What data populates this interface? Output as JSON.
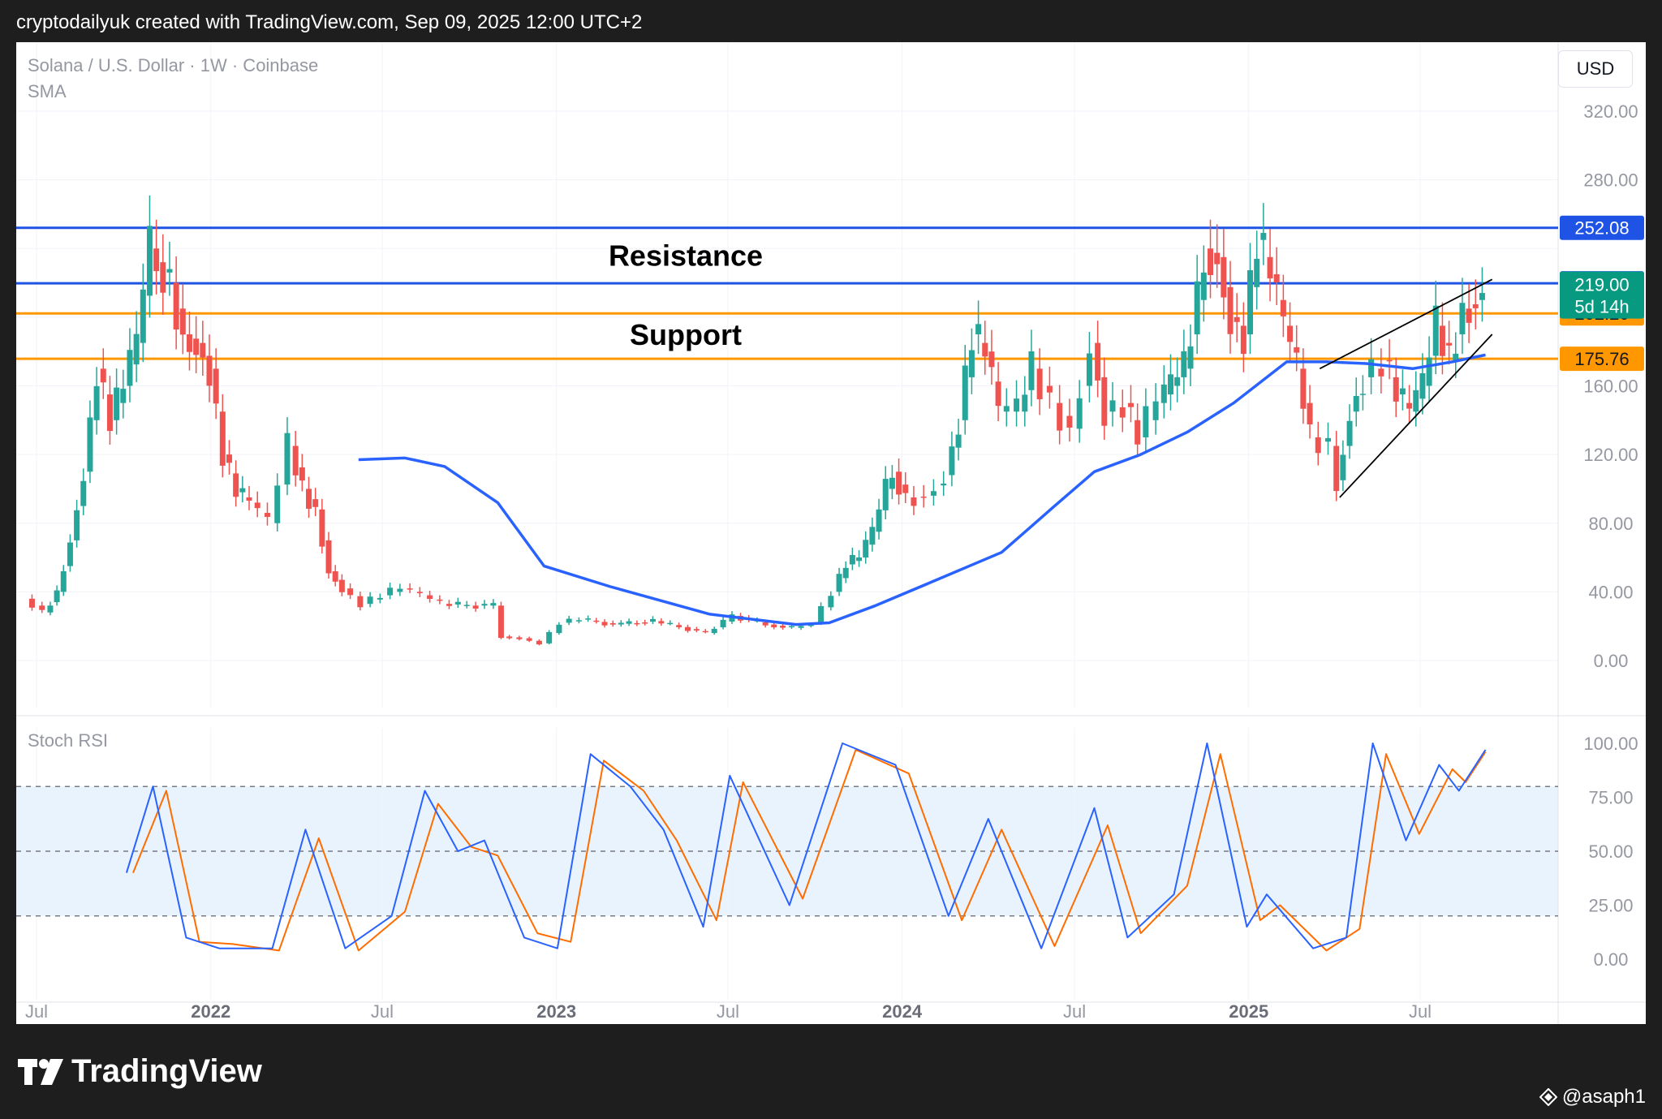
{
  "header": {
    "caption": "cryptodailyuk created with TradingView.com, Sep 09, 2025 12:00 UTC+2"
  },
  "chart": {
    "symbol": "Solana / U.S. Dollar · 1W · Coinbase",
    "indicator": "SMA",
    "currency_button": "USD",
    "oscillator_label": "Stoch RSI"
  },
  "footer": {
    "brand": "TradingView",
    "user": "@asaph1"
  },
  "colors": {
    "up": "#26a69a",
    "down": "#ef5350",
    "sma": "#2962ff",
    "resistance": "#1e53e5",
    "support": "#ff9800",
    "stoch_k": "#2962ff",
    "stoch_d": "#ff6d00",
    "price_tag": "#089981"
  },
  "chart_data": {
    "type": "candlestick",
    "price_axis": {
      "ticks": [
        "320.00",
        "280.00",
        "160.00",
        "120.00",
        "80.00",
        "40.00",
        "0.00"
      ],
      "range": [
        0,
        320
      ]
    },
    "time_axis": {
      "labels": [
        {
          "label": "Jul",
          "date": "2021-07-01",
          "bold": false
        },
        {
          "label": "2022",
          "date": "2022-01-01",
          "bold": true
        },
        {
          "label": "Jul",
          "date": "2022-07-01",
          "bold": false
        },
        {
          "label": "2023",
          "date": "2023-01-01",
          "bold": true
        },
        {
          "label": "Jul",
          "date": "2023-07-01",
          "bold": false
        },
        {
          "label": "2024",
          "date": "2024-01-01",
          "bold": true
        },
        {
          "label": "Jul",
          "date": "2024-07-01",
          "bold": false
        },
        {
          "label": "2025",
          "date": "2025-01-01",
          "bold": true
        },
        {
          "label": "Jul",
          "date": "2025-07-01",
          "bold": false
        }
      ]
    },
    "horizontal_levels": [
      {
        "name": "Resistance",
        "price": 252.08,
        "label": "252.08",
        "kind": "resistance"
      },
      {
        "price": 219.71,
        "label": "219.71",
        "kind": "resistance"
      },
      {
        "name": "Support",
        "price": 202.2,
        "label": "202.20",
        "kind": "support"
      },
      {
        "price": 175.76,
        "label": "175.76",
        "kind": "support"
      }
    ],
    "current_price": {
      "value": 219.0,
      "label": "219.00",
      "countdown": "5d 14h"
    },
    "annotations": [
      {
        "text": "Resistance",
        "price": 236
      },
      {
        "text": "Support",
        "price": 190
      }
    ],
    "price_series": [
      {
        "date": "2021-06-21",
        "value": 36
      },
      {
        "date": "2021-07-12",
        "value": 28
      },
      {
        "date": "2021-07-26",
        "value": 40
      },
      {
        "date": "2021-08-09",
        "value": 70
      },
      {
        "date": "2021-08-23",
        "value": 110
      },
      {
        "date": "2021-09-06",
        "value": 170
      },
      {
        "date": "2021-09-20",
        "value": 140
      },
      {
        "date": "2021-10-04",
        "value": 160
      },
      {
        "date": "2021-10-18",
        "value": 185
      },
      {
        "date": "2021-11-01",
        "value": 240
      },
      {
        "date": "2021-11-08",
        "value": 232
      },
      {
        "date": "2021-11-22",
        "value": 220
      },
      {
        "date": "2021-12-06",
        "value": 190
      },
      {
        "date": "2021-12-20",
        "value": 185
      },
      {
        "date": "2022-01-03",
        "value": 170
      },
      {
        "date": "2022-01-17",
        "value": 120
      },
      {
        "date": "2022-01-31",
        "value": 98
      },
      {
        "date": "2022-02-14",
        "value": 92
      },
      {
        "date": "2022-03-07",
        "value": 80
      },
      {
        "date": "2022-03-28",
        "value": 125
      },
      {
        "date": "2022-04-11",
        "value": 100
      },
      {
        "date": "2022-04-25",
        "value": 88
      },
      {
        "date": "2022-05-09",
        "value": 52
      },
      {
        "date": "2022-05-23",
        "value": 42
      },
      {
        "date": "2022-06-13",
        "value": 33
      },
      {
        "date": "2022-07-04",
        "value": 38
      },
      {
        "date": "2022-07-25",
        "value": 42
      },
      {
        "date": "2022-08-15",
        "value": 38
      },
      {
        "date": "2022-09-05",
        "value": 33
      },
      {
        "date": "2022-10-03",
        "value": 32
      },
      {
        "date": "2022-10-31",
        "value": 32
      },
      {
        "date": "2022-11-07",
        "value": 14
      },
      {
        "date": "2022-11-28",
        "value": 13
      },
      {
        "date": "2022-12-19",
        "value": 10
      },
      {
        "date": "2023-01-09",
        "value": 22
      },
      {
        "date": "2023-01-30",
        "value": 24
      },
      {
        "date": "2023-03-06",
        "value": 21
      },
      {
        "date": "2023-04-17",
        "value": 23
      },
      {
        "date": "2023-06-12",
        "value": 16
      },
      {
        "date": "2023-07-10",
        "value": 26
      },
      {
        "date": "2023-08-14",
        "value": 21
      },
      {
        "date": "2023-09-11",
        "value": 19
      },
      {
        "date": "2023-10-02",
        "value": 22
      },
      {
        "date": "2023-10-23",
        "value": 40
      },
      {
        "date": "2023-11-06",
        "value": 56
      },
      {
        "date": "2023-11-20",
        "value": 60
      },
      {
        "date": "2023-12-04",
        "value": 75
      },
      {
        "date": "2023-12-18",
        "value": 100
      },
      {
        "date": "2023-12-25",
        "value": 110
      },
      {
        "date": "2024-01-08",
        "value": 95
      },
      {
        "date": "2024-01-29",
        "value": 96
      },
      {
        "date": "2024-02-19",
        "value": 108
      },
      {
        "date": "2024-03-04",
        "value": 140
      },
      {
        "date": "2024-03-18",
        "value": 190
      },
      {
        "date": "2024-04-01",
        "value": 180
      },
      {
        "date": "2024-04-15",
        "value": 145
      },
      {
        "date": "2024-05-06",
        "value": 145
      },
      {
        "date": "2024-05-20",
        "value": 170
      },
      {
        "date": "2024-06-10",
        "value": 150
      },
      {
        "date": "2024-07-01",
        "value": 135
      },
      {
        "date": "2024-07-22",
        "value": 185
      },
      {
        "date": "2024-08-05",
        "value": 145
      },
      {
        "date": "2024-08-26",
        "value": 150
      },
      {
        "date": "2024-09-09",
        "value": 130
      },
      {
        "date": "2024-09-30",
        "value": 150
      },
      {
        "date": "2024-10-14",
        "value": 160
      },
      {
        "date": "2024-10-28",
        "value": 170
      },
      {
        "date": "2024-11-11",
        "value": 210
      },
      {
        "date": "2024-11-18",
        "value": 240
      },
      {
        "date": "2024-12-02",
        "value": 235
      },
      {
        "date": "2024-12-16",
        "value": 200
      },
      {
        "date": "2024-12-30",
        "value": 190
      },
      {
        "date": "2025-01-13",
        "value": 245
      },
      {
        "date": "2025-01-27",
        "value": 225
      },
      {
        "date": "2025-02-10",
        "value": 195
      },
      {
        "date": "2025-02-24",
        "value": 170
      },
      {
        "date": "2025-03-10",
        "value": 130
      },
      {
        "date": "2025-03-31",
        "value": 125
      },
      {
        "date": "2025-04-07",
        "value": 105
      },
      {
        "date": "2025-04-21",
        "value": 145
      },
      {
        "date": "2025-05-05",
        "value": 165
      },
      {
        "date": "2025-05-26",
        "value": 175
      },
      {
        "date": "2025-06-09",
        "value": 155
      },
      {
        "date": "2025-06-23",
        "value": 145
      },
      {
        "date": "2025-07-07",
        "value": 160
      },
      {
        "date": "2025-07-21",
        "value": 195
      },
      {
        "date": "2025-08-04",
        "value": 175
      },
      {
        "date": "2025-08-18",
        "value": 205
      },
      {
        "date": "2025-09-01",
        "value": 210
      },
      {
        "date": "2025-09-08",
        "value": 219
      }
    ],
    "sma_series": [
      {
        "date": "2022-06-06",
        "value": 117
      },
      {
        "date": "2022-07-25",
        "value": 118
      },
      {
        "date": "2022-09-05",
        "value": 113
      },
      {
        "date": "2022-10-31",
        "value": 92
      },
      {
        "date": "2022-12-19",
        "value": 55
      },
      {
        "date": "2023-02-27",
        "value": 43
      },
      {
        "date": "2023-06-12",
        "value": 27
      },
      {
        "date": "2023-09-11",
        "value": 21
      },
      {
        "date": "2023-10-16",
        "value": 22
      },
      {
        "date": "2023-12-04",
        "value": 32
      },
      {
        "date": "2024-01-29",
        "value": 45
      },
      {
        "date": "2024-04-15",
        "value": 63
      },
      {
        "date": "2024-06-10",
        "value": 90
      },
      {
        "date": "2024-07-22",
        "value": 110
      },
      {
        "date": "2024-09-09",
        "value": 120
      },
      {
        "date": "2024-10-28",
        "value": 133
      },
      {
        "date": "2024-12-16",
        "value": 150
      },
      {
        "date": "2025-02-10",
        "value": 174
      },
      {
        "date": "2025-03-24",
        "value": 174
      },
      {
        "date": "2025-05-05",
        "value": 173
      },
      {
        "date": "2025-06-23",
        "value": 170
      },
      {
        "date": "2025-08-04",
        "value": 174
      },
      {
        "date": "2025-09-08",
        "value": 178
      }
    ],
    "channel_lines": [
      {
        "from": {
          "date": "2025-04-07",
          "price": 95
        },
        "to": {
          "date": "2025-09-15",
          "price": 190
        }
      },
      {
        "from": {
          "date": "2025-03-17",
          "price": 170
        },
        "to": {
          "date": "2025-09-15",
          "price": 222
        }
      }
    ],
    "stoch_rsi": {
      "ticks": [
        "100.00",
        "75.00",
        "50.00",
        "25.00",
        "0.00"
      ],
      "range": [
        0,
        100
      ],
      "overbought": 80,
      "middle": 50,
      "oversold": 20,
      "k_series": [
        {
          "date": "2021-10-04",
          "value": 40
        },
        {
          "date": "2021-11-01",
          "value": 80
        },
        {
          "date": "2021-12-06",
          "value": 10
        },
        {
          "date": "2022-01-10",
          "value": 5
        },
        {
          "date": "2022-03-07",
          "value": 5
        },
        {
          "date": "2022-04-11",
          "value": 60
        },
        {
          "date": "2022-05-23",
          "value": 5
        },
        {
          "date": "2022-07-11",
          "value": 20
        },
        {
          "date": "2022-08-15",
          "value": 78
        },
        {
          "date": "2022-09-19",
          "value": 50
        },
        {
          "date": "2022-10-17",
          "value": 55
        },
        {
          "date": "2022-11-28",
          "value": 10
        },
        {
          "date": "2023-01-02",
          "value": 5
        },
        {
          "date": "2023-02-06",
          "value": 95
        },
        {
          "date": "2023-03-20",
          "value": 80
        },
        {
          "date": "2023-04-24",
          "value": 60
        },
        {
          "date": "2023-06-05",
          "value": 15
        },
        {
          "date": "2023-07-03",
          "value": 85
        },
        {
          "date": "2023-09-04",
          "value": 25
        },
        {
          "date": "2023-10-30",
          "value": 100
        },
        {
          "date": "2023-12-25",
          "value": 90
        },
        {
          "date": "2024-02-19",
          "value": 20
        },
        {
          "date": "2024-04-01",
          "value": 65
        },
        {
          "date": "2024-05-27",
          "value": 5
        },
        {
          "date": "2024-07-22",
          "value": 70
        },
        {
          "date": "2024-08-26",
          "value": 10
        },
        {
          "date": "2024-10-14",
          "value": 30
        },
        {
          "date": "2024-11-18",
          "value": 100
        },
        {
          "date": "2024-12-30",
          "value": 15
        },
        {
          "date": "2025-01-20",
          "value": 30
        },
        {
          "date": "2025-03-10",
          "value": 5
        },
        {
          "date": "2025-04-14",
          "value": 10
        },
        {
          "date": "2025-05-12",
          "value": 100
        },
        {
          "date": "2025-06-16",
          "value": 55
        },
        {
          "date": "2025-07-21",
          "value": 90
        },
        {
          "date": "2025-08-11",
          "value": 78
        },
        {
          "date": "2025-09-08",
          "value": 97
        }
      ],
      "d_series": [
        {
          "date": "2021-10-11",
          "value": 40
        },
        {
          "date": "2021-11-15",
          "value": 78
        },
        {
          "date": "2021-12-20",
          "value": 8
        },
        {
          "date": "2022-01-24",
          "value": 7
        },
        {
          "date": "2022-03-14",
          "value": 4
        },
        {
          "date": "2022-04-25",
          "value": 56
        },
        {
          "date": "2022-06-06",
          "value": 4
        },
        {
          "date": "2022-07-25",
          "value": 22
        },
        {
          "date": "2022-08-29",
          "value": 72
        },
        {
          "date": "2022-10-03",
          "value": 52
        },
        {
          "date": "2022-10-31",
          "value": 48
        },
        {
          "date": "2022-12-12",
          "value": 12
        },
        {
          "date": "2023-01-16",
          "value": 8
        },
        {
          "date": "2023-02-20",
          "value": 92
        },
        {
          "date": "2023-04-03",
          "value": 78
        },
        {
          "date": "2023-05-08",
          "value": 55
        },
        {
          "date": "2023-06-19",
          "value": 18
        },
        {
          "date": "2023-07-17",
          "value": 82
        },
        {
          "date": "2023-09-18",
          "value": 28
        },
        {
          "date": "2023-11-13",
          "value": 97
        },
        {
          "date": "2024-01-08",
          "value": 86
        },
        {
          "date": "2024-03-04",
          "value": 18
        },
        {
          "date": "2024-04-15",
          "value": 60
        },
        {
          "date": "2024-06-10",
          "value": 6
        },
        {
          "date": "2024-08-05",
          "value": 62
        },
        {
          "date": "2024-09-09",
          "value": 12
        },
        {
          "date": "2024-10-28",
          "value": 34
        },
        {
          "date": "2024-12-02",
          "value": 95
        },
        {
          "date": "2025-01-13",
          "value": 18
        },
        {
          "date": "2025-02-03",
          "value": 25
        },
        {
          "date": "2025-03-24",
          "value": 4
        },
        {
          "date": "2025-04-28",
          "value": 14
        },
        {
          "date": "2025-05-26",
          "value": 95
        },
        {
          "date": "2025-06-30",
          "value": 58
        },
        {
          "date": "2025-08-04",
          "value": 88
        },
        {
          "date": "2025-08-18",
          "value": 82
        },
        {
          "date": "2025-09-08",
          "value": 96
        }
      ]
    }
  }
}
